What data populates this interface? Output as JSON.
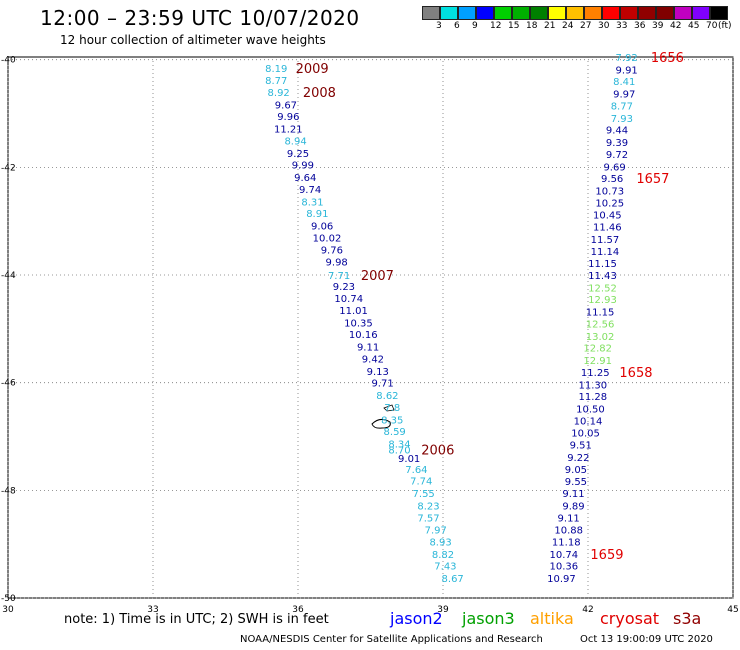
{
  "header": {
    "title": "12:00 – 23:59 UTC 10/07/2020",
    "subtitle": "12 hour collection of altimeter wave heights"
  },
  "legend": {
    "colors": [
      "#808080",
      "#00e0e0",
      "#00a0ff",
      "#0000ff",
      "#00d000",
      "#00b000",
      "#008000",
      "#ffff00",
      "#ffc000",
      "#ff8000",
      "#ff0000",
      "#c00000",
      "#900000",
      "#800000",
      "#c000c0",
      "#8000ff",
      "#000000"
    ],
    "labels": [
      "3",
      "6",
      "9",
      "12",
      "15",
      "18",
      "21",
      "24",
      "27",
      "30",
      "33",
      "36",
      "39",
      "42",
      "45",
      "70",
      "(ft)"
    ]
  },
  "map": {
    "lon_ticks": [
      "30",
      "33",
      "36",
      "39",
      "42",
      "45"
    ],
    "lat_ticks": [
      "-40",
      "-42",
      "-44",
      "-46",
      "-48",
      "-50"
    ],
    "lon_range": [
      30,
      45
    ],
    "lat_range": [
      -50,
      -39.95
    ],
    "grid": "dotted"
  },
  "tracks": [
    {
      "id": "west",
      "points": [
        {
          "lon": 35.55,
          "lat": -40.15,
          "v": "8.19",
          "c": "#2ab6d8"
        },
        {
          "lon": 35.55,
          "lat": -40.38,
          "v": "8.77",
          "c": "#2ab6d8"
        },
        {
          "lon": 35.6,
          "lat": -40.6,
          "v": "8.92",
          "c": "#2ab6d8"
        },
        {
          "lon": 35.75,
          "lat": -40.83,
          "v": "9.67",
          "c": "#000099"
        },
        {
          "lon": 35.8,
          "lat": -41.05,
          "v": "9.96",
          "c": "#000099"
        },
        {
          "lon": 35.8,
          "lat": -41.28,
          "v": "11.21",
          "c": "#000099"
        },
        {
          "lon": 35.95,
          "lat": -41.5,
          "v": "8.94",
          "c": "#2ab6d8"
        },
        {
          "lon": 36.0,
          "lat": -41.73,
          "v": "9.25",
          "c": "#000099"
        },
        {
          "lon": 36.1,
          "lat": -41.95,
          "v": "9.99",
          "c": "#000099"
        },
        {
          "lon": 36.15,
          "lat": -42.18,
          "v": "9.64",
          "c": "#000099"
        },
        {
          "lon": 36.25,
          "lat": -42.4,
          "v": "9.74",
          "c": "#000099"
        },
        {
          "lon": 36.3,
          "lat": -42.63,
          "v": "8.31",
          "c": "#2ab6d8"
        },
        {
          "lon": 36.4,
          "lat": -42.85,
          "v": "8.91",
          "c": "#2ab6d8"
        },
        {
          "lon": 36.5,
          "lat": -43.08,
          "v": "9.06",
          "c": "#000099"
        },
        {
          "lon": 36.6,
          "lat": -43.3,
          "v": "10.02",
          "c": "#000099"
        },
        {
          "lon": 36.7,
          "lat": -43.53,
          "v": "9.76",
          "c": "#000099"
        },
        {
          "lon": 36.8,
          "lat": -43.75,
          "v": "9.98",
          "c": "#000099"
        },
        {
          "lon": 36.85,
          "lat": -44.0,
          "v": "7.71",
          "c": "#2ab6d8"
        },
        {
          "lon": 36.95,
          "lat": -44.2,
          "v": "9.23",
          "c": "#000099"
        },
        {
          "lon": 37.05,
          "lat": -44.43,
          "v": "10.74",
          "c": "#000099"
        },
        {
          "lon": 37.15,
          "lat": -44.65,
          "v": "11.01",
          "c": "#000099"
        },
        {
          "lon": 37.25,
          "lat": -44.88,
          "v": "10.35",
          "c": "#000099"
        },
        {
          "lon": 37.35,
          "lat": -45.1,
          "v": "10.16",
          "c": "#000099"
        },
        {
          "lon": 37.45,
          "lat": -45.33,
          "v": "9.11",
          "c": "#000099"
        },
        {
          "lon": 37.55,
          "lat": -45.55,
          "v": "9.42",
          "c": "#000099"
        },
        {
          "lon": 37.65,
          "lat": -45.78,
          "v": "9.13",
          "c": "#000099"
        },
        {
          "lon": 37.75,
          "lat": -46.0,
          "v": "9.71",
          "c": "#000099"
        },
        {
          "lon": 37.85,
          "lat": -46.23,
          "v": "8.62",
          "c": "#2ab6d8"
        },
        {
          "lon": 37.95,
          "lat": -46.45,
          "v": "7.8",
          "c": "#2ab6d8"
        },
        {
          "lon": 37.95,
          "lat": -46.68,
          "v": "8.35",
          "c": "#2ab6d8"
        },
        {
          "lon": 38.0,
          "lat": -46.9,
          "v": "8.59",
          "c": "#2ab6d8"
        },
        {
          "lon": 38.1,
          "lat": -47.13,
          "v": "8.34",
          "c": "#2ab6d8"
        },
        {
          "lon": 38.1,
          "lat": -47.24,
          "v": "8.70",
          "c": "#2ab6d8"
        },
        {
          "lon": 38.3,
          "lat": -47.4,
          "v": "9.01",
          "c": "#000099"
        },
        {
          "lon": 38.45,
          "lat": -47.6,
          "v": "7.64",
          "c": "#2ab6d8"
        },
        {
          "lon": 38.55,
          "lat": -47.82,
          "v": "7.74",
          "c": "#2ab6d8"
        },
        {
          "lon": 38.6,
          "lat": -48.05,
          "v": "7.55",
          "c": "#2ab6d8"
        },
        {
          "lon": 38.7,
          "lat": -48.28,
          "v": "8.23",
          "c": "#2ab6d8"
        },
        {
          "lon": 38.7,
          "lat": -48.5,
          "v": "7.57",
          "c": "#2ab6d8"
        },
        {
          "lon": 38.85,
          "lat": -48.73,
          "v": "7.97",
          "c": "#2ab6d8"
        },
        {
          "lon": 38.95,
          "lat": -48.95,
          "v": "8.93",
          "c": "#2ab6d8"
        },
        {
          "lon": 39.0,
          "lat": -49.18,
          "v": "8.82",
          "c": "#2ab6d8"
        },
        {
          "lon": 39.05,
          "lat": -49.4,
          "v": "7.43",
          "c": "#2ab6d8"
        },
        {
          "lon": 39.2,
          "lat": -49.63,
          "v": "8.67",
          "c": "#2ab6d8"
        }
      ],
      "times": [
        {
          "lon": 35.95,
          "lat": -40.15,
          "t": "2009"
        },
        {
          "lon": 36.1,
          "lat": -40.6,
          "t": "2008"
        },
        {
          "lon": 37.3,
          "lat": -44.0,
          "t": "2007"
        },
        {
          "lon": 38.55,
          "lat": -47.24,
          "t": "2006"
        }
      ]
    },
    {
      "id": "east",
      "points": [
        {
          "lon": 42.8,
          "lat": -39.95,
          "v": "7.92",
          "c": "#2ab6d8"
        },
        {
          "lon": 42.8,
          "lat": -40.18,
          "v": "9.91",
          "c": "#000099"
        },
        {
          "lon": 42.75,
          "lat": -40.4,
          "v": "8.41",
          "c": "#2ab6d8"
        },
        {
          "lon": 42.75,
          "lat": -40.63,
          "v": "9.97",
          "c": "#000099"
        },
        {
          "lon": 42.7,
          "lat": -40.85,
          "v": "8.77",
          "c": "#2ab6d8"
        },
        {
          "lon": 42.7,
          "lat": -41.08,
          "v": "7.93",
          "c": "#2ab6d8"
        },
        {
          "lon": 42.6,
          "lat": -41.3,
          "v": "9.44",
          "c": "#000099"
        },
        {
          "lon": 42.6,
          "lat": -41.53,
          "v": "9.39",
          "c": "#000099"
        },
        {
          "lon": 42.6,
          "lat": -41.75,
          "v": "9.72",
          "c": "#000099"
        },
        {
          "lon": 42.55,
          "lat": -41.98,
          "v": "9.69",
          "c": "#000099"
        },
        {
          "lon": 42.5,
          "lat": -42.2,
          "v": "9.56",
          "c": "#000099"
        },
        {
          "lon": 42.45,
          "lat": -42.43,
          "v": "10.73",
          "c": "#000099"
        },
        {
          "lon": 42.45,
          "lat": -42.65,
          "v": "10.25",
          "c": "#000099"
        },
        {
          "lon": 42.4,
          "lat": -42.88,
          "v": "10.45",
          "c": "#000099"
        },
        {
          "lon": 42.4,
          "lat": -43.1,
          "v": "11.46",
          "c": "#000099"
        },
        {
          "lon": 42.35,
          "lat": -43.33,
          "v": "11.57",
          "c": "#000099"
        },
        {
          "lon": 42.35,
          "lat": -43.55,
          "v": "11.14",
          "c": "#000099"
        },
        {
          "lon": 42.3,
          "lat": -43.78,
          "v": "11.15",
          "c": "#000099"
        },
        {
          "lon": 42.3,
          "lat": -44.0,
          "v": "11.43",
          "c": "#000099"
        },
        {
          "lon": 42.3,
          "lat": -44.23,
          "v": "12.52",
          "c": "#80e060"
        },
        {
          "lon": 42.3,
          "lat": -44.45,
          "v": "12.93",
          "c": "#80e060"
        },
        {
          "lon": 42.25,
          "lat": -44.68,
          "v": "11.15",
          "c": "#000099"
        },
        {
          "lon": 42.25,
          "lat": -44.9,
          "v": "12.56",
          "c": "#80e060"
        },
        {
          "lon": 42.25,
          "lat": -45.13,
          "v": "13.02",
          "c": "#80e060"
        },
        {
          "lon": 42.2,
          "lat": -45.35,
          "v": "12.82",
          "c": "#80e060"
        },
        {
          "lon": 42.2,
          "lat": -45.58,
          "v": "12.91",
          "c": "#80e060"
        },
        {
          "lon": 42.15,
          "lat": -45.8,
          "v": "11.25",
          "c": "#000099"
        },
        {
          "lon": 42.1,
          "lat": -46.03,
          "v": "11.30",
          "c": "#000099"
        },
        {
          "lon": 42.1,
          "lat": -46.25,
          "v": "11.28",
          "c": "#000099"
        },
        {
          "lon": 42.05,
          "lat": -46.48,
          "v": "10.50",
          "c": "#000099"
        },
        {
          "lon": 42.0,
          "lat": -46.7,
          "v": "10.14",
          "c": "#000099"
        },
        {
          "lon": 41.95,
          "lat": -46.93,
          "v": "10.05",
          "c": "#000099"
        },
        {
          "lon": 41.85,
          "lat": -47.15,
          "v": "9.51",
          "c": "#000099"
        },
        {
          "lon": 41.8,
          "lat": -47.38,
          "v": "9.22",
          "c": "#000099"
        },
        {
          "lon": 41.75,
          "lat": -47.6,
          "v": "9.05",
          "c": "#000099"
        },
        {
          "lon": 41.75,
          "lat": -47.83,
          "v": "9.55",
          "c": "#000099"
        },
        {
          "lon": 41.7,
          "lat": -48.05,
          "v": "9.11",
          "c": "#000099"
        },
        {
          "lon": 41.7,
          "lat": -48.28,
          "v": "9.89",
          "c": "#000099"
        },
        {
          "lon": 41.6,
          "lat": -48.5,
          "v": "9.11",
          "c": "#000099"
        },
        {
          "lon": 41.6,
          "lat": -48.73,
          "v": "10.88",
          "c": "#000099"
        },
        {
          "lon": 41.55,
          "lat": -48.95,
          "v": "11.18",
          "c": "#000099"
        },
        {
          "lon": 41.5,
          "lat": -49.18,
          "v": "10.74",
          "c": "#000099"
        },
        {
          "lon": 41.5,
          "lat": -49.4,
          "v": "10.36",
          "c": "#000099"
        },
        {
          "lon": 41.45,
          "lat": -49.63,
          "v": "10.97",
          "c": "#000099"
        }
      ],
      "times": [
        {
          "lon": 43.3,
          "lat": -39.95,
          "t": "1656"
        },
        {
          "lon": 43.0,
          "lat": -42.2,
          "t": "1657"
        },
        {
          "lon": 42.65,
          "lat": -45.8,
          "t": "1658"
        },
        {
          "lon": 42.05,
          "lat": -49.18,
          "t": "1659"
        }
      ]
    }
  ],
  "footer": {
    "note": "note: 1) Time is in UTC; 2) SWH is in feet",
    "satellites": [
      {
        "name": "jason2",
        "color": "#0000ff"
      },
      {
        "name": "jason3",
        "color": "#00a000"
      },
      {
        "name": "altika",
        "color": "#ffa000"
      },
      {
        "name": "cryosat",
        "color": "#e00000"
      },
      {
        "name": "s3a",
        "color": "#900000"
      }
    ],
    "credit": "NOAA/NESDIS Center for Satellite Applications and Research",
    "timestamp": "Oct 13 19:00:09 UTC 2020"
  }
}
